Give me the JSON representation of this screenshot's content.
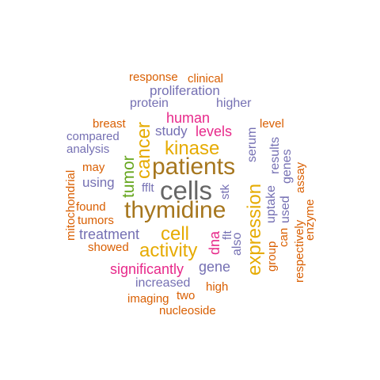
{
  "colors": {
    "orange": "#d95f02",
    "purple": "#7570b3",
    "magenta": "#e7298a",
    "green": "#66a61e",
    "gold": "#e6ab02",
    "brown": "#a6761d",
    "gray": "#666666"
  },
  "words": [
    {
      "text": "response",
      "color": "orange"
    },
    {
      "text": "clinical",
      "color": "orange"
    },
    {
      "text": "proliferation",
      "color": "purple"
    },
    {
      "text": "protein",
      "color": "purple"
    },
    {
      "text": "higher",
      "color": "purple"
    },
    {
      "text": "human",
      "color": "magenta"
    },
    {
      "text": "breast",
      "color": "orange"
    },
    {
      "text": "level",
      "color": "orange"
    },
    {
      "text": "study",
      "color": "purple"
    },
    {
      "text": "levels",
      "color": "magenta"
    },
    {
      "text": "compared",
      "color": "purple"
    },
    {
      "text": "analysis",
      "color": "purple"
    },
    {
      "text": "kinase",
      "color": "gold"
    },
    {
      "text": "patients",
      "color": "brown"
    },
    {
      "text": "may",
      "color": "orange"
    },
    {
      "text": "using",
      "color": "purple"
    },
    {
      "text": "fflt",
      "color": "purple"
    },
    {
      "text": "cells",
      "color": "gray"
    },
    {
      "text": "found",
      "color": "orange"
    },
    {
      "text": "thymidine",
      "color": "brown"
    },
    {
      "text": "tumors",
      "color": "orange"
    },
    {
      "text": "treatment",
      "color": "purple"
    },
    {
      "text": "cell",
      "color": "gold"
    },
    {
      "text": "showed",
      "color": "orange"
    },
    {
      "text": "activity",
      "color": "gold"
    },
    {
      "text": "significantly",
      "color": "magenta"
    },
    {
      "text": "gene",
      "color": "purple"
    },
    {
      "text": "increased",
      "color": "purple"
    },
    {
      "text": "high",
      "color": "orange"
    },
    {
      "text": "imaging",
      "color": "orange"
    },
    {
      "text": "two",
      "color": "orange"
    },
    {
      "text": "nucleoside",
      "color": "orange"
    },
    {
      "text": "mitochondrial",
      "color": "orange"
    },
    {
      "text": "tumor",
      "color": "green"
    },
    {
      "text": "cancer",
      "color": "gold"
    },
    {
      "text": "stk",
      "color": "purple"
    },
    {
      "text": "dna",
      "color": "magenta"
    },
    {
      "text": "flt",
      "color": "purple"
    },
    {
      "text": "also",
      "color": "purple"
    },
    {
      "text": "serum",
      "color": "purple"
    },
    {
      "text": "expression",
      "color": "gold"
    },
    {
      "text": "uptake",
      "color": "purple"
    },
    {
      "text": "results",
      "color": "purple"
    },
    {
      "text": "group",
      "color": "orange"
    },
    {
      "text": "can",
      "color": "orange"
    },
    {
      "text": "used",
      "color": "purple"
    },
    {
      "text": "genes",
      "color": "purple"
    },
    {
      "text": "assay",
      "color": "orange"
    },
    {
      "text": "respectively",
      "color": "orange"
    },
    {
      "text": "enzyme",
      "color": "orange"
    }
  ]
}
